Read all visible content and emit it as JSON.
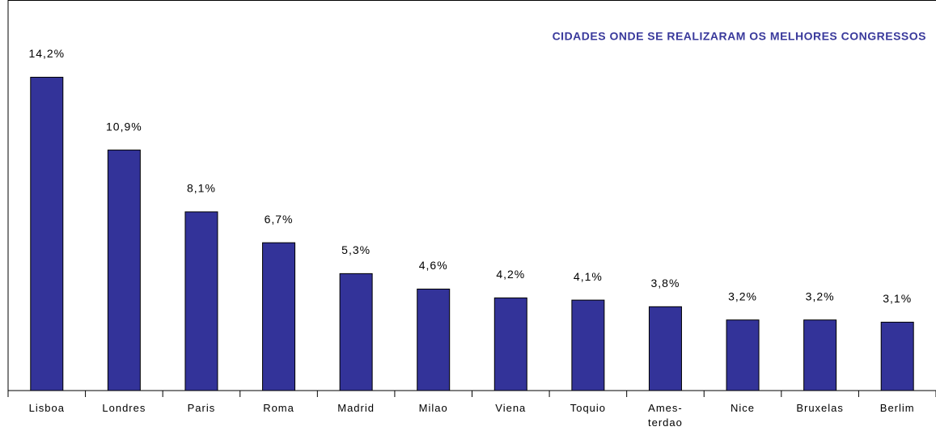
{
  "chart_data": {
    "type": "bar",
    "title": "CIDADES ONDE SE REALIZARAM OS MELHORES CONGRESSOS",
    "categories": [
      "Lisboa",
      "Londres",
      "Paris",
      "Roma",
      "Madrid",
      "Milao",
      "Viena",
      "Toquio",
      "Ames-\nterdao",
      "Nice",
      "Bruxelas",
      "Berlim"
    ],
    "values": [
      14.2,
      10.9,
      8.1,
      6.7,
      5.3,
      4.6,
      4.2,
      4.1,
      3.8,
      3.2,
      3.2,
      3.1
    ],
    "value_labels": [
      "14,2%",
      "10,9%",
      "8,1%",
      "6,7%",
      "5,3%",
      "4,6%",
      "4,2%",
      "4,1%",
      "3,8%",
      "3,2%",
      "3,2%",
      "3,1%"
    ],
    "color": "#333399",
    "ylim": [
      0,
      17.7
    ]
  }
}
